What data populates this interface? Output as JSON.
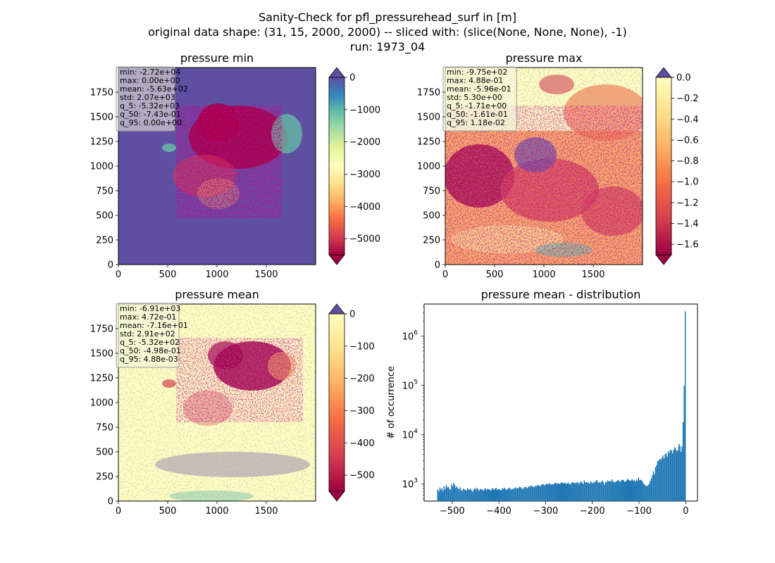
{
  "figure": {
    "suptitle_lines": [
      "Sanity-Check for pfl_pressurehead_surf in [m]",
      "original data shape: (31, 15, 2000, 2000) -- sliced with: (slice(None, None, None), -1)",
      "run: 1973_04"
    ]
  },
  "colors": {
    "spectral": [
      "#9e0142",
      "#d53e4f",
      "#f46d43",
      "#fdae61",
      "#fee08b",
      "#ffffbf",
      "#e6f598",
      "#abdda4",
      "#66c2a5",
      "#3288bd",
      "#5e4fa2"
    ],
    "hist_bar": "#1f77b4"
  },
  "chart_data": [
    {
      "type": "heatmap",
      "title": "pressure min",
      "xlim": [
        0,
        2000
      ],
      "ylim": [
        0,
        2000
      ],
      "xticks": [
        0,
        500,
        1000,
        1500
      ],
      "yticks": [
        0,
        250,
        500,
        750,
        1000,
        1250,
        1500,
        1750
      ],
      "colorbar": {
        "range": [
          -5500,
          0
        ],
        "ticks": [
          0,
          -1000,
          -2000,
          -3000,
          -4000,
          -5000
        ],
        "tick_labels": [
          "0",
          "−1000",
          "−2000",
          "−3000",
          "−4000",
          "−5000"
        ],
        "extend": "both"
      },
      "stats": [
        "min: -2.72e+04",
        "max: 0.00e+00",
        "mean: -5.63e+02",
        "std: 2.07e+03",
        "q_5: -5.32e+03",
        "q_50: -7.43e-01",
        "q_95: 0.00e+00"
      ]
    },
    {
      "type": "heatmap",
      "title": "pressure max",
      "xlim": [
        0,
        2000
      ],
      "ylim": [
        0,
        2000
      ],
      "xticks": [
        0,
        500,
        1000,
        1500
      ],
      "yticks": [
        0,
        250,
        500,
        750,
        1000,
        1250,
        1500,
        1750
      ],
      "colorbar": {
        "range": [
          -1.7,
          0.0
        ],
        "ticks": [
          0.0,
          -0.2,
          -0.4,
          -0.6,
          -0.8,
          -1.0,
          -1.2,
          -1.4,
          -1.6
        ],
        "tick_labels": [
          "0.0",
          "−0.2",
          "−0.4",
          "−0.6",
          "−0.8",
          "−1.0",
          "−1.2",
          "−1.4",
          "−1.6"
        ],
        "extend": "both"
      },
      "stats": [
        "min: -9.75e+02",
        "max: 4.88e-01",
        "mean: -5.96e-01",
        "std: 5.30e+00",
        "q_5: -1.71e+00",
        "q_50: -1.61e-01",
        "q_95: 1.18e-02"
      ]
    },
    {
      "type": "heatmap",
      "title": "pressure mean",
      "xlim": [
        0,
        2000
      ],
      "ylim": [
        0,
        2000
      ],
      "xticks": [
        0,
        500,
        1000,
        1500
      ],
      "yticks": [
        0,
        250,
        500,
        750,
        1000,
        1250,
        1500,
        1750
      ],
      "colorbar": {
        "range": [
          -550,
          0
        ],
        "ticks": [
          0,
          -100,
          -200,
          -300,
          -400,
          -500
        ],
        "tick_labels": [
          "0",
          "−100",
          "−200",
          "−300",
          "−400",
          "−500"
        ],
        "extend": "both"
      },
      "stats": [
        "min: -6.91e+03",
        "max: 4.72e-01",
        "mean: -7.16e+01",
        "std: 2.91e+02",
        "q_5: -5.32e+02",
        "q_50: -4.98e-01",
        "q_95: 4.88e-03"
      ]
    },
    {
      "type": "bar",
      "title": "pressure mean - distribution",
      "ylabel": "# of occurrence",
      "yscale": "log",
      "xlim": [
        -560,
        25
      ],
      "ylim": [
        450,
        4500000
      ],
      "xticks": [
        -500,
        -400,
        -300,
        -200,
        -100,
        0
      ],
      "xtick_labels": [
        "−500",
        "−400",
        "−300",
        "−200",
        "−100",
        "0"
      ],
      "yticks": [
        1000,
        10000,
        100000,
        1000000
      ],
      "ytick_bases": [
        "10",
        "10",
        "10",
        "10"
      ],
      "ytick_exps": [
        "3",
        "4",
        "5",
        "6"
      ],
      "bin_range": [
        -532,
        0
      ],
      "counts": [
        780,
        700,
        850,
        760,
        820,
        720,
        900,
        780,
        950,
        850,
        880,
        800,
        760,
        990,
        900,
        1050,
        960,
        840,
        900,
        820,
        780,
        860,
        760,
        720,
        800,
        780,
        760,
        740,
        820,
        780,
        760,
        800,
        740,
        700,
        780,
        820,
        760,
        840,
        780,
        720,
        800,
        780,
        760,
        740,
        780,
        820,
        760,
        800,
        780,
        760,
        740,
        800,
        820,
        760,
        800,
        840,
        760,
        800,
        780,
        740,
        760,
        820,
        800,
        840,
        780,
        760,
        800,
        820,
        840,
        760,
        800,
        780,
        820,
        860,
        800,
        840,
        820,
        880,
        860,
        820,
        780,
        840,
        880,
        860,
        820,
        860,
        900,
        880,
        940,
        900,
        860,
        880,
        920,
        900,
        960,
        940,
        900,
        920,
        980,
        1000,
        960,
        940,
        1000,
        1020,
        980,
        1040,
        1000,
        960,
        1000,
        980,
        1040,
        1060,
        1000,
        1040,
        1020,
        1000,
        1060,
        1080,
        1040,
        1020,
        1080,
        1000,
        1040,
        1060,
        1000,
        980,
        1060,
        1100,
        1040,
        1080,
        1020,
        1100,
        1060,
        1000,
        1080,
        1120,
        1060,
        1000,
        1180,
        1080,
        1100,
        1060,
        1080,
        1000,
        1140,
        1080,
        1020,
        1100,
        1080,
        1160,
        1200,
        1060,
        1100,
        1040,
        1120,
        1180,
        1080,
        960,
        1100,
        1080,
        1180,
        1120,
        1160,
        1120,
        1240,
        1140,
        1080,
        1100,
        1120,
        1180,
        1200,
        1140,
        1100,
        1200,
        1220,
        1180,
        1100,
        1140,
        1200,
        1280,
        1200,
        1160,
        1180,
        1260,
        1160,
        1200,
        1120,
        1240,
        1160,
        1340,
        1200,
        1220,
        1180,
        1100,
        1000,
        960,
        920,
        900,
        940,
        1000,
        1150,
        1300,
        1500,
        1800,
        1600,
        2200,
        2400,
        2900,
        3000,
        3200,
        3100,
        3400,
        3800,
        3300,
        4000,
        4200,
        3600,
        4600,
        4300,
        5000,
        4800,
        4200,
        4900,
        5600,
        5200,
        4700,
        4800,
        6500,
        5900,
        4500,
        5800,
        18000,
        99000,
        3200000
      ]
    }
  ]
}
